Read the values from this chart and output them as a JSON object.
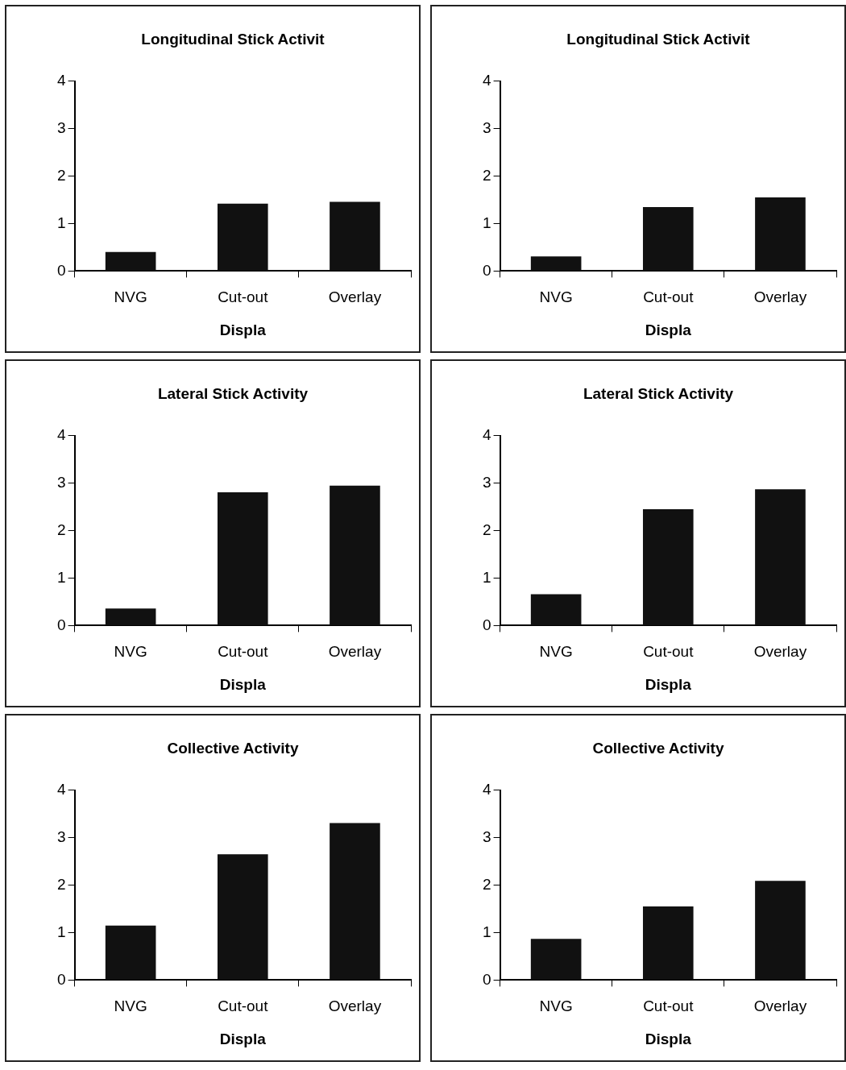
{
  "chart_data": [
    {
      "type": "bar",
      "title": "Longitudinal Stick Activit",
      "xlabel": "Displa",
      "categories": [
        "NVG",
        "Cut-out",
        "Overlay"
      ],
      "values": [
        0.4,
        1.42,
        1.46
      ],
      "color": "#111111",
      "ylim": [
        0,
        4
      ],
      "yticks": [
        0,
        1,
        2,
        3,
        4
      ],
      "grid": false,
      "legend": false
    },
    {
      "type": "bar",
      "title": "Longitudinal Stick Activit",
      "xlabel": "Displa",
      "categories": [
        "NVG",
        "Cut-out",
        "Overlay"
      ],
      "values": [
        0.31,
        1.35,
        1.55
      ],
      "color": "#111111",
      "ylim": [
        0,
        4
      ],
      "yticks": [
        0,
        1,
        2,
        3,
        4
      ],
      "grid": false,
      "legend": false
    },
    {
      "type": "bar",
      "title": "Lateral Stick Activity",
      "xlabel": "Displa",
      "categories": [
        "NVG",
        "Cut-out",
        "Overlay"
      ],
      "values": [
        0.36,
        2.81,
        2.95
      ],
      "color": "#111111",
      "ylim": [
        0,
        4
      ],
      "yticks": [
        0,
        1,
        2,
        3,
        4
      ],
      "grid": false,
      "legend": false
    },
    {
      "type": "bar",
      "title": "Lateral Stick Activity",
      "xlabel": "Displa",
      "categories": [
        "NVG",
        "Cut-out",
        "Overlay"
      ],
      "values": [
        0.66,
        2.45,
        2.87
      ],
      "color": "#111111",
      "ylim": [
        0,
        4
      ],
      "yticks": [
        0,
        1,
        2,
        3,
        4
      ],
      "grid": false,
      "legend": false
    },
    {
      "type": "bar",
      "title": "Collective Activity",
      "xlabel": "Displa",
      "categories": [
        "NVG",
        "Cut-out",
        "Overlay"
      ],
      "values": [
        1.15,
        2.65,
        3.31
      ],
      "color": "#111111",
      "ylim": [
        0,
        4
      ],
      "yticks": [
        0,
        1,
        2,
        3,
        4
      ],
      "grid": false,
      "legend": false
    },
    {
      "type": "bar",
      "title": "Collective Activity",
      "xlabel": "Displa",
      "categories": [
        "NVG",
        "Cut-out",
        "Overlay"
      ],
      "values": [
        0.87,
        1.55,
        2.09
      ],
      "color": "#111111",
      "ylim": [
        0,
        4
      ],
      "yticks": [
        0,
        1,
        2,
        3,
        4
      ],
      "grid": false,
      "legend": false
    }
  ]
}
